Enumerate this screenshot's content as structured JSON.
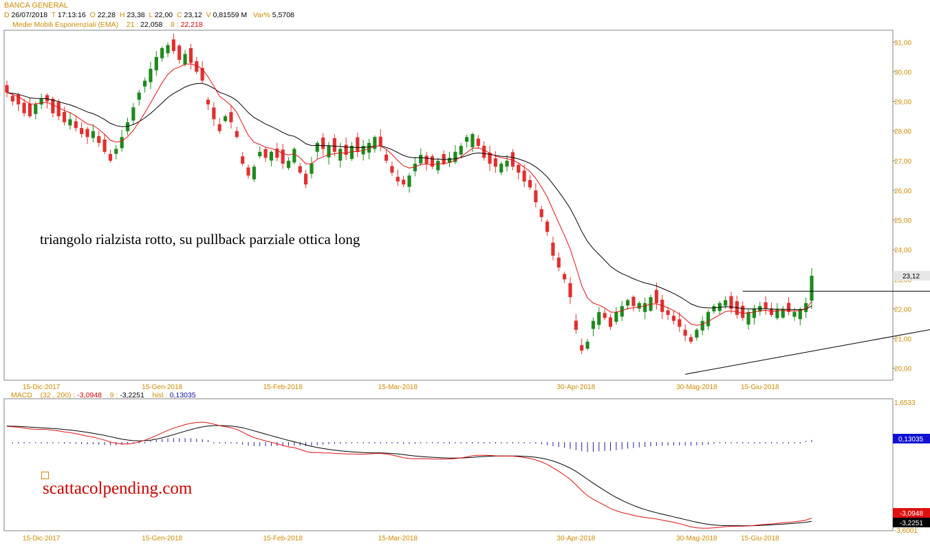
{
  "header": {
    "symbol": "BANCA GENERAL",
    "date_label": "D",
    "date": "26/07/2018",
    "time_label": "T",
    "time": "17:13:16",
    "open_label": "O",
    "open": "22,28",
    "high_label": "H",
    "high": "23,38",
    "low_label": "L",
    "low": "22,00",
    "close_label": "C",
    "close": "23,12",
    "volume_label": "V",
    "volume": "0,81559 M",
    "var_label": "Var%",
    "var": "5,5708"
  },
  "ema_legend": {
    "name": "Medie Mobili Esponenziali (EMA)",
    "p1": "21 :",
    "v1": "22,058",
    "p2": "8 :",
    "v2": "22,218"
  },
  "macd_legend": {
    "name": "MACD",
    "params": "(32 , 200) :",
    "macd": "-3,0948",
    "sig_label": "9 :",
    "signal": "-3,2251",
    "hist_label": "hist :",
    "hist": "0,13035"
  },
  "annotation": "triangolo rialzista rotto, su pullback parziale ottica long",
  "watermark": "scattacolpending.com",
  "colors": {
    "up": "#1e8a1e",
    "down": "#e03030",
    "ema8": "#e01010",
    "ema21": "#000000",
    "label": "#d08a00",
    "hist": "#2020a0",
    "frame": "#808080"
  },
  "chart_data": [
    {
      "type": "candlestick",
      "title": "BANCA GENERAL",
      "ylim": [
        19.6,
        31.4
      ],
      "yticks": [
        "31,00",
        "30,00",
        "29,00",
        "28,00",
        "27,00",
        "26,00",
        "25,00",
        "24,00",
        "23,00",
        "22,00",
        "21,00",
        "20,00"
      ],
      "ytick_values": [
        31,
        30,
        29,
        28,
        27,
        26,
        25,
        24,
        23,
        22,
        21,
        20
      ],
      "last_price_label": "23,12",
      "last_price": 23.12,
      "x_tick_labels": [
        "15-Dic-2017",
        "15-Gen-2018",
        "15-Feb-2018",
        "15-Mar-2018",
        "30-Apr-2018",
        "30-Mag-2018",
        "15-Giu-2018"
      ],
      "x_tick_index": [
        6,
        27,
        48,
        68,
        99,
        120,
        131
      ],
      "close": [
        29.3,
        29.0,
        28.9,
        28.6,
        28.5,
        28.9,
        29.1,
        29.0,
        28.6,
        28.5,
        28.3,
        28.4,
        28.1,
        27.9,
        27.8,
        28.0,
        27.6,
        27.3,
        27.0,
        27.4,
        27.8,
        28.3,
        28.8,
        29.3,
        29.7,
        30.1,
        30.5,
        30.8,
        30.9,
        30.7,
        30.4,
        30.6,
        30.3,
        30.0,
        29.7,
        28.9,
        28.4,
        28.0,
        28.5,
        28.3,
        27.8,
        26.9,
        26.5,
        26.8,
        27.3,
        27.1,
        27.3,
        27.1,
        26.9,
        27.0,
        27.4,
        26.6,
        26.2,
        26.9,
        27.6,
        27.4,
        27.5,
        27.3,
        27.4,
        27.2,
        27.5,
        27.3,
        27.5,
        27.6,
        27.8,
        27.5,
        27.0,
        26.6,
        26.3,
        26.2,
        26.5,
        26.9,
        27.2,
        26.9,
        26.8,
        27.0,
        26.9,
        27.1,
        27.3,
        27.5,
        27.8,
        27.9,
        27.5,
        27.1,
        26.9,
        26.8,
        26.9,
        27.0,
        26.8,
        26.6,
        26.3,
        26.1,
        25.6,
        25.1,
        24.6,
        23.8,
        23.4,
        23.0,
        22.4,
        21.3,
        20.6,
        20.9,
        21.6,
        21.9,
        21.7,
        21.4,
        21.9,
        22.1,
        22.3,
        22.1,
        22.2,
        22.2,
        22.4,
        22.2,
        21.9,
        21.8,
        21.6,
        21.4,
        21.1,
        20.9,
        21.3,
        21.6,
        21.9,
        22.1,
        22.2,
        22.3,
        22.0,
        21.8,
        21.7,
        21.9,
        22.0,
        22.1,
        22.0,
        21.8,
        22.0,
        22.0,
        21.9,
        21.9,
        22.0,
        22.2,
        23.12
      ],
      "ema8_last": 22.218,
      "ema21_last": 22.058,
      "trendlines": [
        {
          "name": "resistance",
          "from": [
            128,
            22.6
          ],
          "to": [
            176,
            22.6
          ]
        },
        {
          "name": "support",
          "from": [
            118,
            19.8
          ],
          "to": [
            176,
            22.0
          ]
        }
      ]
    },
    {
      "type": "line",
      "title": "MACD",
      "series": [
        {
          "name": "MACD",
          "last": -3.0948
        },
        {
          "name": "9",
          "last": -3.2251
        },
        {
          "name": "hist",
          "last": 0.13035
        }
      ],
      "yticks": [
        "1,6533",
        "-3,6001"
      ],
      "ylim": [
        -3.6001,
        1.6533
      ],
      "value_labels": [
        "0,13035",
        "-3,0948",
        "-3,2251"
      ]
    }
  ]
}
